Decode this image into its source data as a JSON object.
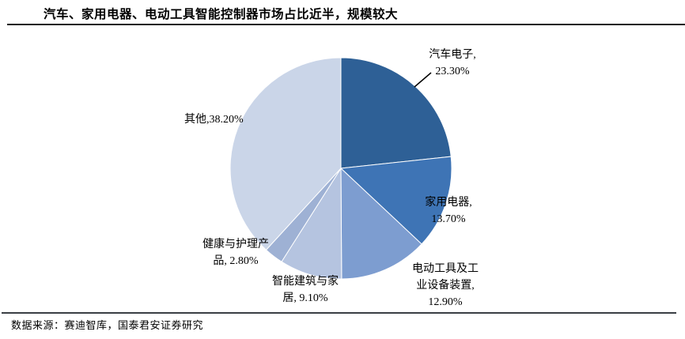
{
  "header": {
    "title": "汽车、家用电器、电动工具智能控制器市场占比近半，规模较大"
  },
  "footer": {
    "source": "数据来源：赛迪智库，国泰君安证券研究"
  },
  "chart_data": {
    "type": "pie",
    "title": "汽车、家用电器、电动工具智能控制器市场占比近半，规模较大",
    "start_angle_deg": 0,
    "direction": "clockwise",
    "legend_position": "none",
    "categories": [
      "汽车电子",
      "家用电器",
      "电动工具及工业设备装置",
      "智能建筑与家居",
      "健康与护理产品",
      "其他"
    ],
    "values": [
      23.3,
      13.7,
      12.9,
      9.1,
      2.8,
      38.2
    ],
    "unit": "%",
    "slices": [
      {
        "name": "汽车电子",
        "value": 23.3,
        "pct_label": "23.30%",
        "color": "#2E6096",
        "label_lines": [
          "汽车电子,",
          "23.30%"
        ]
      },
      {
        "name": "家用电器",
        "value": 13.7,
        "pct_label": "13.70%",
        "color": "#3E74B5",
        "label_lines": [
          "家用电器,",
          "13.70%"
        ]
      },
      {
        "name": "电动工具及工业设备装置",
        "value": 12.9,
        "pct_label": "12.90%",
        "color": "#7D9DD0",
        "label_lines": [
          "电动工具及工",
          "业设备装置,",
          "12.90%"
        ]
      },
      {
        "name": "智能建筑与家居",
        "value": 9.1,
        "pct_label": "9.10%",
        "color": "#B5C4E0",
        "label_lines": [
          "智能建筑与家",
          "居, 9.10%"
        ]
      },
      {
        "name": "健康与护理产品",
        "value": 2.8,
        "pct_label": "2.80%",
        "color": "#9EB1D4",
        "label_lines": [
          "健康与护理产",
          "品, 2.80%"
        ]
      },
      {
        "name": "其他",
        "value": 38.2,
        "pct_label": "38.20%",
        "color": "#CAD5E8",
        "label_lines": [
          "其他,38.20%"
        ]
      }
    ]
  }
}
